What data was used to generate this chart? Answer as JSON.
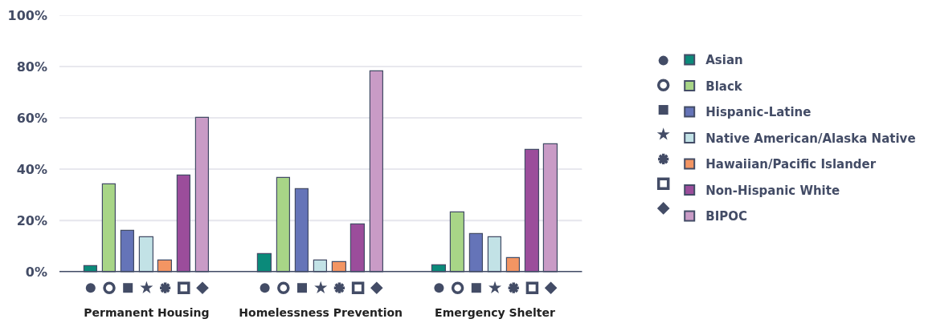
{
  "chart_data": {
    "type": "bar",
    "categories": [
      "Permanent Housing",
      "Homelessness Prevention",
      "Emergency Shelter"
    ],
    "series": [
      {
        "name": "Asian",
        "color": "#0b8a7a",
        "marker": "circle",
        "values": [
          2.5,
          6.9,
          2.7
        ]
      },
      {
        "name": "Black",
        "color": "#a8d587",
        "marker": "circle-open",
        "values": [
          34.1,
          36.7,
          23.4
        ]
      },
      {
        "name": "Hispanic-Latine",
        "color": "#6574b8",
        "marker": "square",
        "values": [
          16.0,
          32.2,
          15.0
        ]
      },
      {
        "name": "Native American/Alaska Native",
        "color": "#c2e2e6",
        "marker": "star",
        "values": [
          13.7,
          4.5,
          13.7
        ]
      },
      {
        "name": "Hawaiian/Pacific Islander",
        "color": "#f39563",
        "marker": "asterisk",
        "values": [
          4.5,
          4.0,
          5.4
        ]
      },
      {
        "name": "Non-Hispanic White",
        "color": "#9b4d9b",
        "marker": "square-open",
        "values": [
          37.6,
          18.6,
          47.5
        ]
      },
      {
        "name": "BIPOC",
        "color": "#c99bc6",
        "marker": "diamond",
        "values": [
          60.2,
          78.2,
          49.8
        ]
      }
    ],
    "ylim": [
      0,
      100
    ],
    "yticks": [
      {
        "value": 0,
        "label": "0%"
      },
      {
        "value": 20,
        "label": "20%"
      },
      {
        "value": 40,
        "label": "40%"
      },
      {
        "value": 60,
        "label": "60%"
      },
      {
        "value": 80,
        "label": "80%"
      },
      {
        "value": 100,
        "label": "100%"
      }
    ],
    "grid": "y",
    "legend": "right"
  }
}
